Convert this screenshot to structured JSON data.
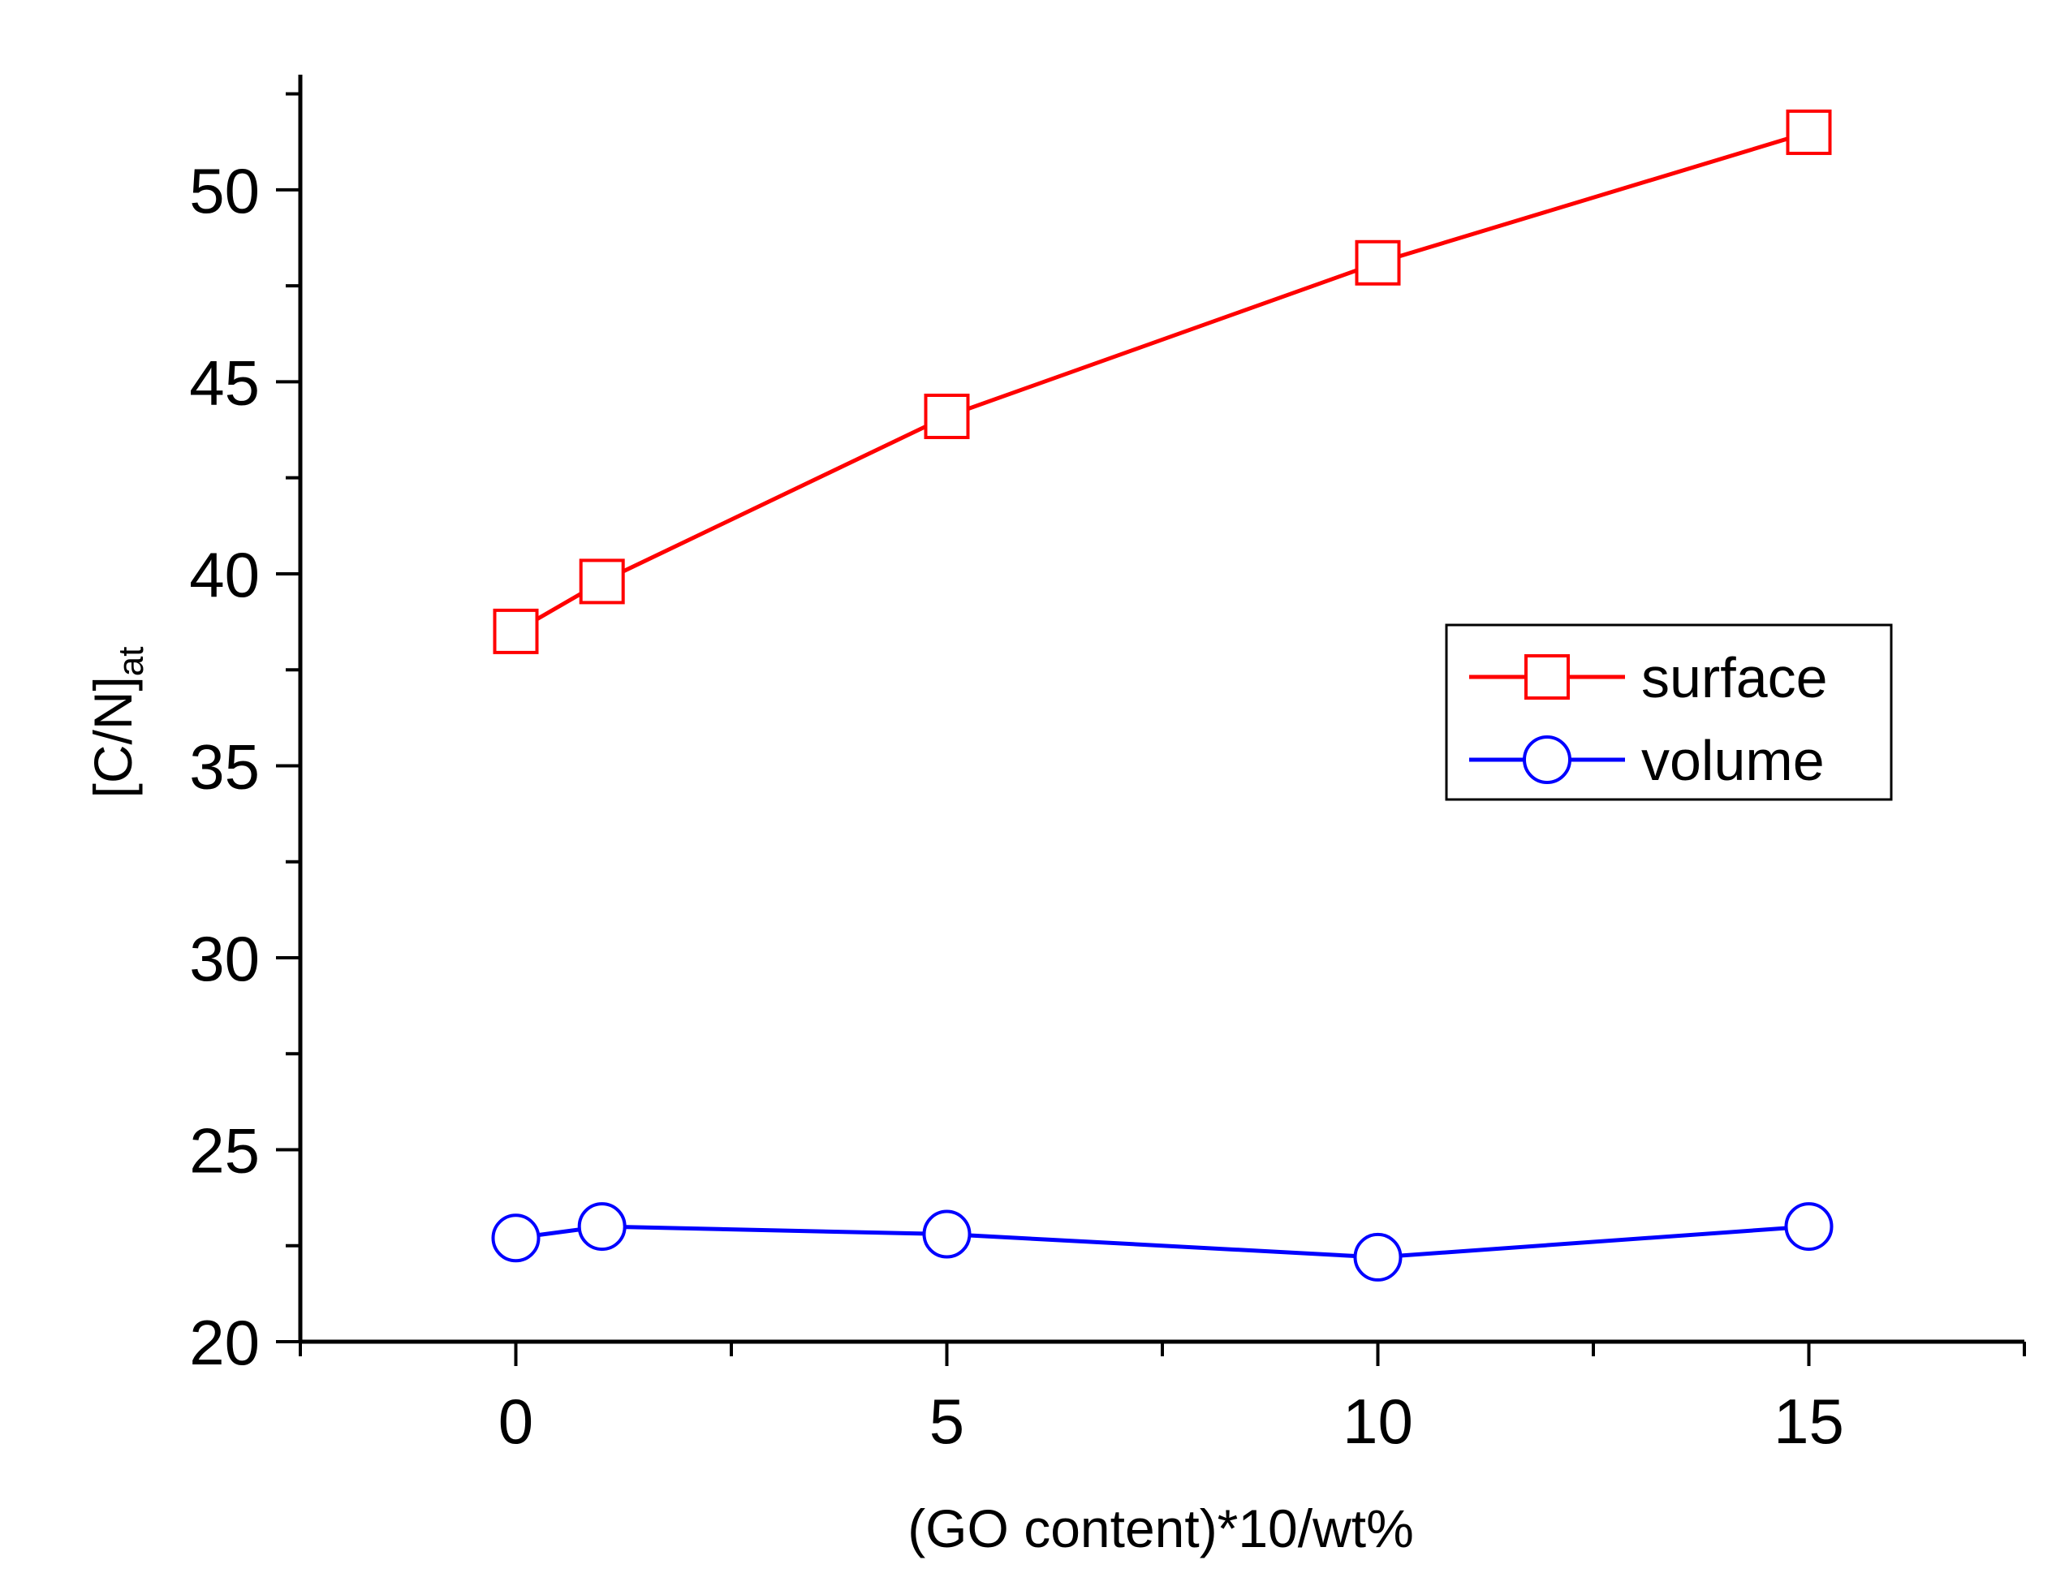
{
  "chart_data": {
    "type": "line",
    "title": "",
    "xlabel": "(GO content)*10/wt%",
    "ylabel": {
      "main": "[C/N]",
      "subscript": "at"
    },
    "xlim": [
      -2.5,
      17.5
    ],
    "ylim": [
      20,
      53
    ],
    "xticks": [
      0,
      5,
      10,
      15
    ],
    "xtick_labels": [
      "0",
      "5",
      "10",
      "15"
    ],
    "yticks": [
      20,
      25,
      30,
      35,
      40,
      45,
      50
    ],
    "ytick_labels": [
      "20",
      "25",
      "30",
      "35",
      "40",
      "45",
      "50"
    ],
    "grid": false,
    "legend_position": "right",
    "series": [
      {
        "name": "surface",
        "color": "#ff0000",
        "marker": "square-open",
        "x": [
          0,
          1,
          5,
          10,
          15
        ],
        "values": [
          38.5,
          39.8,
          44.1,
          48.1,
          51.5
        ]
      },
      {
        "name": "volume",
        "color": "#0000ff",
        "marker": "circle-open",
        "x": [
          0,
          1,
          5,
          10,
          15
        ],
        "values": [
          22.7,
          23.0,
          22.8,
          22.2,
          23.0
        ]
      }
    ]
  }
}
